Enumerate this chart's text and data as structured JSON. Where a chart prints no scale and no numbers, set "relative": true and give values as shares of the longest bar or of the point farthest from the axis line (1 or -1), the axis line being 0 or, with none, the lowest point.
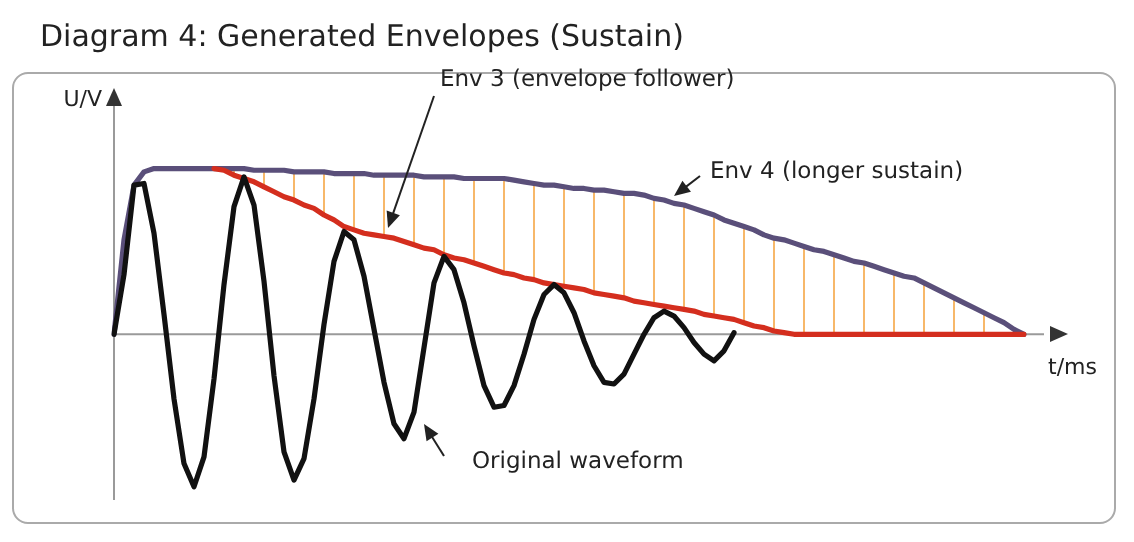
{
  "chart_data": {
    "type": "line",
    "title": "Diagram 4: Generated Envelopes (Sustain)",
    "xlabel": "t/ms",
    "ylabel": "U/V",
    "relative": true,
    "tick_labels": false,
    "categories": [
      null,
      null,
      null,
      null,
      null,
      null,
      null,
      null,
      null,
      null,
      null,
      null,
      null,
      null,
      null,
      null,
      null,
      null,
      null,
      null,
      null,
      null,
      null,
      null,
      null,
      null,
      null,
      null,
      null,
      null,
      null,
      null,
      null,
      null,
      null,
      null,
      null,
      null,
      null,
      null,
      null,
      null,
      null,
      null,
      null,
      null,
      null,
      null,
      null,
      null,
      null,
      null,
      null,
      null,
      null,
      null,
      null,
      null,
      null,
      null,
      null,
      null,
      null,
      null,
      null,
      null,
      null,
      null,
      null,
      null,
      null,
      null,
      null,
      null,
      null,
      null,
      null,
      null,
      null,
      null,
      null,
      null,
      null,
      null,
      null,
      null,
      null,
      null,
      null,
      null,
      null,
      null
    ],
    "series": [
      {
        "name": "Original waveform",
        "color": "#111111",
        "values": [
          0,
          0.36,
          0.9,
          0.91,
          0.61,
          0.12,
          -0.39,
          -0.78,
          -0.92,
          -0.74,
          -0.27,
          0.3,
          0.77,
          0.95,
          0.78,
          0.32,
          -0.25,
          -0.71,
          -0.88,
          -0.75,
          -0.39,
          0.06,
          0.44,
          0.62,
          0.57,
          0.35,
          0.03,
          -0.29,
          -0.54,
          -0.63,
          -0.47,
          -0.08,
          0.31,
          0.47,
          0.39,
          0.19,
          -0.07,
          -0.31,
          -0.44,
          -0.43,
          -0.31,
          -0.12,
          0.09,
          0.24,
          0.3,
          0.25,
          0.13,
          -0.04,
          -0.19,
          -0.29,
          -0.3,
          -0.24,
          -0.12,
          0,
          0.1,
          0.14,
          0.11,
          0.04,
          -0.05,
          -0.12,
          -0.16,
          -0.1,
          0.01,
          null,
          null,
          null,
          null,
          null,
          null,
          null,
          null,
          null,
          null,
          null,
          null,
          null,
          null,
          null,
          null,
          null,
          null,
          null,
          null,
          null,
          null,
          null,
          null,
          null,
          null,
          null,
          null,
          null
        ]
      },
      {
        "name": "Env 3 (envelope follower)",
        "color": "#d42e1e",
        "values": [
          null,
          null,
          null,
          null,
          null,
          null,
          null,
          null,
          null,
          null,
          1,
          0.99,
          0.96,
          0.94,
          0.92,
          0.89,
          0.86,
          0.83,
          0.81,
          0.78,
          0.76,
          0.72,
          0.69,
          0.65,
          0.63,
          0.61,
          0.6,
          0.59,
          0.58,
          0.56,
          0.54,
          0.52,
          0.51,
          0.48,
          0.46,
          0.45,
          0.43,
          0.41,
          0.39,
          0.37,
          0.36,
          0.34,
          0.33,
          0.31,
          0.3,
          0.29,
          0.28,
          0.27,
          0.25,
          0.24,
          0.23,
          0.22,
          0.2,
          0.19,
          0.18,
          0.17,
          0.16,
          0.15,
          0.14,
          0.12,
          0.11,
          0.1,
          0.09,
          0.07,
          0.05,
          0.04,
          0.02,
          0.01,
          0,
          0,
          0,
          0,
          0,
          0,
          0,
          0,
          0,
          0,
          0,
          0,
          0,
          0,
          0,
          0,
          0,
          0,
          0,
          0,
          0,
          0,
          0,
          0
        ]
      },
      {
        "name": "Env 4 (longer sustain)",
        "color": "#5a4f7a",
        "values": [
          0,
          0.57,
          0.9,
          0.98,
          1,
          1,
          1,
          1,
          1,
          1,
          1,
          1,
          1,
          1,
          0.99,
          0.99,
          0.99,
          0.99,
          0.98,
          0.98,
          0.98,
          0.98,
          0.97,
          0.97,
          0.97,
          0.97,
          0.96,
          0.96,
          0.96,
          0.96,
          0.96,
          0.95,
          0.95,
          0.95,
          0.95,
          0.94,
          0.94,
          0.94,
          0.94,
          0.94,
          0.93,
          0.92,
          0.91,
          0.9,
          0.9,
          0.89,
          0.88,
          0.88,
          0.87,
          0.87,
          0.86,
          0.85,
          0.85,
          0.84,
          0.82,
          0.81,
          0.79,
          0.78,
          0.76,
          0.74,
          0.72,
          0.69,
          0.67,
          0.65,
          0.63,
          0.6,
          0.58,
          0.57,
          0.55,
          0.53,
          0.51,
          0.5,
          0.48,
          0.46,
          0.44,
          0.43,
          0.41,
          0.39,
          0.37,
          0.35,
          0.34,
          0.31,
          0.28,
          0.25,
          0.22,
          0.19,
          0.16,
          0.13,
          0.1,
          0.07,
          0.03,
          0
        ]
      }
    ]
  }
}
